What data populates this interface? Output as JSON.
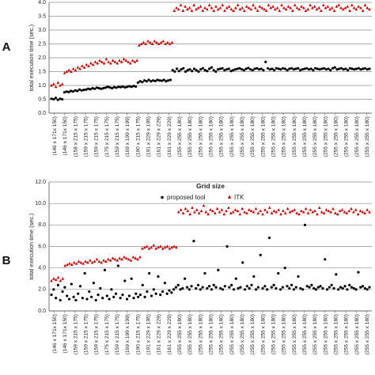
{
  "chart_data": [
    {
      "type": "scatter",
      "panel_label": "A",
      "ylabel": "total execution time (sec.)",
      "xlabel": "Grid size",
      "ylim": [
        0,
        4.0
      ],
      "yticks": [
        "0.0",
        "0.5",
        "1.0",
        "1.5",
        "2.0",
        "2.5",
        "3.0",
        "3.5",
        "4.0"
      ],
      "grid": true,
      "categories": [
        "(146 x 171x 150)",
        "(146 x 171x 150)",
        "(158 x 215 x 175)",
        "(159 x 215 x 175)",
        "(159 x 215 x 175)",
        "(175 x 215 x 175)",
        "(159 x 215 x 175)",
        "(169 x 199 x 199)",
        "(190 x 215 x 175)",
        "(191 x 229 x 195)",
        "(161 x 229 x 229)",
        "(161 x 229 x 229)",
        "(255 x 255 x 180)",
        "(255 x 255 x 180)",
        "(255 x 255 x 180)",
        "(255 x 255 x 180)",
        "(255 x 255 x 180)",
        "(255 x 255 x 180)",
        "(255 x 255 x 180)",
        "(255 x 255 x 180)",
        "(255 x 255 x 180)",
        "(255 x 255 x 180)",
        "(255 x 255 x 180)",
        "(255 x 255 x 180)",
        "(255 x 255 x 180)",
        "(255 x 255 x 180)",
        "(255 x 255 x 180)",
        "(255 x 255 x 180)",
        "(255 x 255 x 180)",
        "(255 x 255 x 180)",
        "(255 x 255 x 180)"
      ],
      "legend": [
        "proposed tool",
        "ITK"
      ],
      "series": [
        {
          "name": "proposed tool",
          "color": "#000000",
          "marker": "circle",
          "values": [
            0.52,
            0.5,
            0.55,
            0.48,
            0.52,
            0.5,
            0.75,
            0.78,
            0.76,
            0.8,
            0.78,
            0.82,
            0.8,
            0.85,
            0.82,
            0.84,
            0.85,
            0.88,
            0.86,
            0.9,
            0.88,
            0.92,
            0.9,
            0.88,
            0.9,
            0.92,
            0.95,
            0.93,
            0.9,
            0.94,
            0.92,
            0.95,
            0.94,
            0.96,
            0.93,
            0.95,
            0.97,
            0.95,
            0.98,
            0.96,
            1.1,
            1.15,
            1.12,
            1.18,
            1.15,
            1.2,
            1.15,
            1.18,
            1.16,
            1.2,
            1.18,
            1.17,
            1.2,
            1.15,
            1.18,
            1.2,
            1.55,
            1.5,
            1.6,
            1.52,
            1.58,
            1.62,
            1.5,
            1.55,
            1.58,
            1.52,
            1.6,
            1.55,
            1.5,
            1.58,
            1.62,
            1.55,
            1.52,
            1.6,
            1.65,
            1.55,
            1.5,
            1.58,
            1.6,
            1.62,
            1.55,
            1.58,
            1.6,
            1.52,
            1.55,
            1.58,
            1.6,
            1.62,
            1.58,
            1.55,
            1.6,
            1.63,
            1.58,
            1.55,
            1.6,
            1.62,
            1.58,
            1.6,
            1.55,
            1.85,
            1.62,
            1.58,
            1.6,
            1.55,
            1.62,
            1.6,
            1.58,
            1.62,
            1.6,
            1.55,
            1.6,
            1.62,
            1.58,
            1.6,
            1.62,
            1.55,
            1.58,
            1.6,
            1.62,
            1.58,
            1.6,
            1.55,
            1.62,
            1.6,
            1.58,
            1.6,
            1.62,
            1.58,
            1.6,
            1.55,
            1.62,
            1.65,
            1.58,
            1.6,
            1.62,
            1.58,
            1.6,
            1.55,
            1.62,
            1.6,
            1.58,
            1.6,
            1.62,
            1.58,
            1.6,
            1.62,
            1.58,
            1.6
          ]
        },
        {
          "name": "ITK",
          "color": "#c00000",
          "marker": "triangle",
          "values": [
            1.0,
            1.05,
            0.95,
            1.1,
            1.0,
            1.05,
            1.45,
            1.5,
            1.55,
            1.5,
            1.6,
            1.55,
            1.65,
            1.6,
            1.7,
            1.65,
            1.75,
            1.7,
            1.8,
            1.75,
            1.85,
            1.8,
            1.9,
            1.85,
            1.8,
            1.95,
            1.85,
            1.8,
            1.9,
            1.85,
            1.8,
            1.9,
            1.85,
            1.95,
            1.9,
            1.85,
            1.8,
            1.9,
            1.85,
            1.9,
            2.45,
            2.5,
            2.55,
            2.5,
            2.6,
            2.55,
            2.5,
            2.6,
            2.55,
            2.5,
            2.55,
            2.6,
            2.5,
            2.55,
            2.5,
            2.55,
            3.7,
            3.8,
            3.75,
            3.9,
            3.7,
            3.85,
            3.75,
            3.8,
            3.7,
            3.9,
            3.75,
            3.8,
            3.85,
            3.7,
            3.8,
            3.75,
            3.9,
            3.8,
            3.7,
            3.85,
            3.75,
            3.8,
            3.9,
            3.7,
            3.8,
            3.85,
            3.75,
            3.7,
            3.8,
            3.9,
            3.75,
            3.8,
            3.7,
            3.85,
            3.8,
            3.75,
            3.9,
            3.8,
            3.7,
            3.85,
            3.8,
            3.75,
            3.7,
            3.9,
            3.8,
            3.85,
            3.75,
            3.8,
            3.7,
            3.9,
            3.8,
            3.75,
            3.85,
            3.8,
            3.7,
            3.9,
            3.8,
            3.75,
            3.85,
            3.8,
            3.7,
            3.75,
            3.9,
            3.8,
            3.85,
            3.75,
            3.8,
            3.7,
            3.9,
            3.8,
            3.85,
            3.75,
            3.8,
            3.7,
            3.85,
            3.9,
            3.8,
            3.75,
            3.8,
            3.85,
            3.7,
            3.9,
            3.8,
            3.75,
            3.85,
            3.8,
            3.7,
            3.9,
            3.8,
            3.75
          ]
        }
      ]
    },
    {
      "type": "scatter",
      "panel_label": "B",
      "ylabel": "total execution time (sec.)",
      "xlabel": "",
      "ylim": [
        0,
        12.0
      ],
      "yticks": [
        "0.0",
        "2.0",
        "4.0",
        "6.0",
        "8.0",
        "10.0",
        "12.0"
      ],
      "grid": true,
      "categories": [
        "(146 x 171x 150)",
        "(146 x 171x 150)",
        "(159 x 215 x 175)",
        "(159 x 215 x 175)",
        "(159 x 215 x 175)",
        "(175 x 215 x 175)",
        "(159 x 215 x 175)",
        "(169 x 199 x 199)",
        "(190 x 215 x 175)",
        "(191 x 229 x 195)",
        "(161 x 229 x 229)",
        "(161 x 229 x 229)",
        "(255 x 255 x 180)",
        "(255 x 255 x 180)",
        "(255 x 255 x 180)",
        "(255 x 255 x 180)",
        "(255 x 255 x 180)",
        "(255 x 255 x 180)",
        "(255 x 255 x 180)",
        "(255 x 255 x 180)",
        "(255 x 255 x 180)",
        "(255 x 255 x 180)",
        "(255 x 255 x 180)",
        "(255 x 255 x 180)",
        "(255 x 255 x 180)",
        "(255 x 255 x 180)",
        "(255 x 255 x 180)",
        "(255 x 255 x 180)",
        "(255 x 255 x 180)",
        "(255 x 255 x 180)",
        "(255 x 255 x 180)"
      ],
      "series": [
        {
          "name": "proposed tool",
          "color": "#000000",
          "marker": "circle",
          "values": [
            1.5,
            2.0,
            1.2,
            2.4,
            1.0,
            1.8,
            2.2,
            1.4,
            1.1,
            2.5,
            1.3,
            1.0,
            1.6,
            2.3,
            1.2,
            3.5,
            1.1,
            1.8,
            1.3,
            2.6,
            1.0,
            1.5,
            2.1,
            1.2,
            3.8,
            1.4,
            1.1,
            2.0,
            1.3,
            1.6,
            4.2,
            1.2,
            1.5,
            2.8,
            1.1,
            1.4,
            3.0,
            1.2,
            1.6,
            1.3,
            1.5,
            2.4,
            1.3,
            1.8,
            3.5,
            1.4,
            2.0,
            1.6,
            3.2,
            1.5,
            1.8,
            2.6,
            1.6,
            1.9,
            1.7,
            2.0,
            2.2,
            2.4,
            2.0,
            2.1,
            3.0,
            2.2,
            2.0,
            2.3,
            6.5,
            2.1,
            2.4,
            2.0,
            2.2,
            3.5,
            2.1,
            2.3,
            2.0,
            2.4,
            2.2,
            3.8,
            2.1,
            2.0,
            2.3,
            6.0,
            2.2,
            2.4,
            2.0,
            3.0,
            2.1,
            2.2,
            4.5,
            2.0,
            2.3,
            2.1,
            2.4,
            3.2,
            2.0,
            2.2,
            5.2,
            2.1,
            2.3,
            2.0,
            6.8,
            2.2,
            2.4,
            2.1,
            3.5,
            2.0,
            2.2,
            4.0,
            2.3,
            2.1,
            2.4,
            2.0,
            2.2,
            3.2,
            2.1,
            2.0,
            8.0,
            2.3,
            2.2,
            2.4,
            2.1,
            2.0,
            2.2,
            2.3,
            2.1,
            4.8,
            2.0,
            2.2,
            2.4,
            2.1,
            3.4,
            2.0,
            2.2,
            2.1,
            2.3,
            2.0,
            2.4,
            2.2,
            2.1,
            2.0,
            3.6,
            2.2,
            2.3,
            2.1,
            2.0,
            2.2
          ]
        },
        {
          "name": "ITK",
          "color": "#c00000",
          "marker": "triangle",
          "values": [
            2.8,
            3.0,
            2.9,
            3.1,
            2.8,
            3.0,
            4.2,
            4.3,
            4.4,
            4.3,
            4.5,
            4.4,
            4.6,
            4.5,
            4.4,
            4.6,
            4.5,
            4.7,
            4.5,
            4.6,
            4.8,
            4.6,
            4.5,
            4.7,
            4.6,
            4.8,
            4.7,
            4.9,
            4.8,
            4.7,
            4.9,
            4.8,
            5.0,
            4.9,
            4.8,
            4.7,
            5.0,
            4.9,
            4.8,
            5.0,
            5.8,
            5.9,
            6.0,
            5.8,
            5.9,
            6.1,
            5.8,
            5.9,
            6.0,
            5.8,
            5.9,
            6.0,
            5.8,
            5.9,
            6.0,
            5.9,
            9.2,
            9.4,
            9.1,
            9.5,
            9.3,
            9.0,
            9.6,
            9.2,
            9.4,
            9.1,
            9.3,
            9.8,
            9.2,
            9.0,
            9.4,
            9.3,
            9.1,
            9.5,
            9.2,
            9.4,
            9.0,
            9.3,
            9.6,
            9.1,
            9.2,
            9.4,
            9.3,
            9.0,
            9.5,
            9.2,
            9.1,
            9.4,
            9.3,
            9.2,
            9.5,
            9.1,
            9.3,
            9.0,
            9.4,
            9.2,
            9.6,
            9.1,
            9.3,
            9.2,
            9.4,
            9.0,
            9.3,
            9.1,
            9.5,
            9.2,
            9.3,
            9.4,
            9.1,
            9.0,
            9.3,
            9.2,
            9.5,
            9.1,
            9.4,
            9.2,
            9.3,
            9.0,
            9.6,
            9.2,
            9.1,
            9.4,
            9.3,
            9.2,
            9.5,
            9.1,
            9.0,
            9.3,
            9.4,
            9.2,
            9.1,
            9.3,
            9.5,
            9.2,
            9.4,
            9.0,
            9.3,
            9.2,
            9.1,
            9.4,
            9.2
          ]
        }
      ]
    }
  ]
}
